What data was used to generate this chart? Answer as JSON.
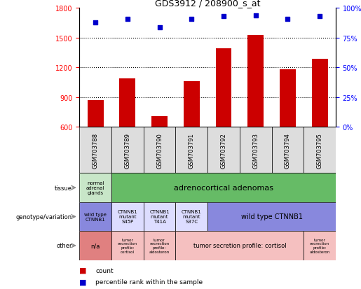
{
  "title": "GDS3912 / 208900_s_at",
  "samples": [
    "GSM703788",
    "GSM703789",
    "GSM703790",
    "GSM703791",
    "GSM703792",
    "GSM703793",
    "GSM703794",
    "GSM703795"
  ],
  "bar_values": [
    870,
    1090,
    710,
    1060,
    1390,
    1530,
    1180,
    1290
  ],
  "percentile_values": [
    88,
    91,
    84,
    91,
    93,
    94,
    91,
    93
  ],
  "bar_color": "#cc0000",
  "percentile_color": "#0000cc",
  "ylim_left": [
    600,
    1800
  ],
  "ylim_right": [
    0,
    100
  ],
  "yticks_left": [
    600,
    900,
    1200,
    1500,
    1800
  ],
  "yticks_right": [
    0,
    25,
    50,
    75,
    100
  ],
  "tissue_col0_text": "normal\nadrenal\nglands",
  "tissue_col0_color": "#c8e6c8",
  "tissue_col1_7_text": "adrenocortical adenomas",
  "tissue_col1_7_color": "#66bb66",
  "geno_col0_text": "wild type\nCTNNB1",
  "geno_col0_color": "#8888dd",
  "geno_col1_text": "CTNNB1\nmutant\nS45P",
  "geno_col1_color": "#ddddff",
  "geno_col2_text": "CTNNB1\nmutant\nT41A",
  "geno_col2_color": "#ddddff",
  "geno_col3_text": "CTNNB1\nmutant\nS37C",
  "geno_col3_color": "#ddddff",
  "geno_col4_7_text": "wild type CTNNB1",
  "geno_col4_7_color": "#8888dd",
  "other_col0_text": "n/a",
  "other_col0_color": "#e08080",
  "other_col1_text": "tumor\nsecrection\nprofile:\ncortisol",
  "other_col1_color": "#f5c0c0",
  "other_col2_text": "tumor\nsecrection\nprofile:\naldosteron",
  "other_col2_color": "#f5c0c0",
  "other_col3_6_text": "tumor secretion profile: cortisol",
  "other_col3_6_color": "#f5c0c0",
  "other_col7_text": "tumor\nsecrection\nprofile:\naldosteron",
  "other_col7_color": "#f5c0c0",
  "row_labels": [
    "tissue",
    "genotype/variation",
    "other"
  ],
  "legend_count_color": "#cc0000",
  "legend_percentile_color": "#0000cc"
}
